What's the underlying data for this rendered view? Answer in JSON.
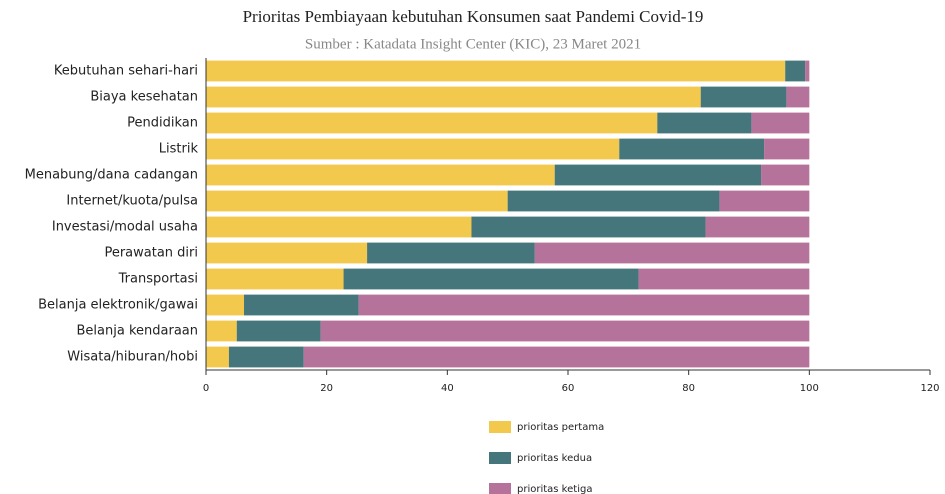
{
  "chart_data": {
    "type": "stacked-barh",
    "title": "Prioritas Pembiayaan kebutuhan Konsumen saat Pandemi Covid-19",
    "subtitle": "Sumber : Katadata Insight Center (KIC), 23 Maret 2021",
    "categories": [
      "Kebutuhan sehari-hari",
      "Biaya kesehatan",
      "Pendidikan",
      "Listrik",
      "Menabung/dana cadangan",
      "Internet/kuota/pulsa",
      "Investasi/modal usaha",
      "Perawatan diri",
      "Transportasi",
      "Belanja elektronik/gawai",
      "Belanja kendaraan",
      "Wisata/hiburan/hobi"
    ],
    "series": [
      {
        "name": "prioritas pertama",
        "color": "#f2c94c",
        "values": [
          96,
          82,
          74.8,
          68.5,
          57.8,
          50,
          44,
          26.7,
          22.8,
          6.3,
          5.1,
          3.8
        ]
      },
      {
        "name": "prioritas kedua",
        "color": "#44767c",
        "values": [
          3.3,
          14.2,
          15.6,
          24,
          34.2,
          35.1,
          38.8,
          27.8,
          48.9,
          19,
          13.9,
          12.4
        ]
      },
      {
        "name": "prioritas ketiga",
        "color": "#b5729b",
        "values": [
          0.7,
          3.8,
          9.6,
          7.5,
          8,
          14.9,
          17.2,
          45.5,
          28.3,
          74.7,
          81,
          83.8
        ]
      }
    ],
    "xlim": [
      0,
      120
    ],
    "xticks": [
      0,
      20,
      40,
      60,
      80,
      100,
      120
    ]
  }
}
